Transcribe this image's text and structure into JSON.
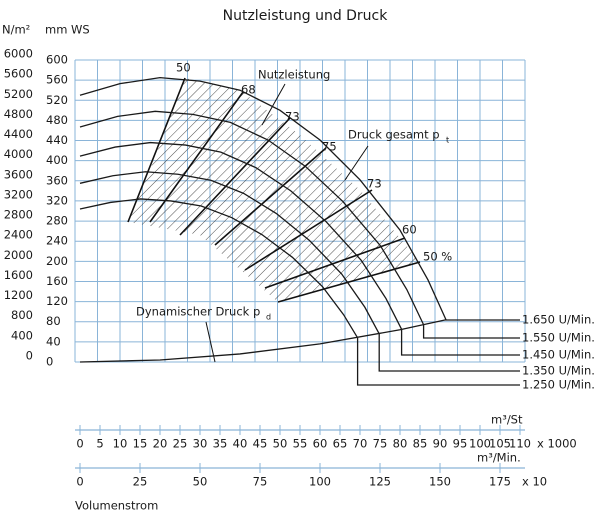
{
  "chart_data": {
    "type": "line",
    "title": "Nutzleistung und Druck",
    "y_label": "mm WS",
    "y2_label": "N/m²",
    "ylim": [
      0,
      600
    ],
    "yticks": [
      0,
      40,
      80,
      120,
      160,
      200,
      240,
      280,
      320,
      360,
      400,
      440,
      480,
      520,
      560,
      600
    ],
    "y2lim": [
      0,
      6000
    ],
    "y2ticks": [
      0,
      400,
      800,
      1200,
      1600,
      2000,
      2400,
      2800,
      3200,
      3600,
      4000,
      4400,
      4800,
      5200,
      5600,
      6000
    ],
    "xlim": [
      0,
      110
    ],
    "color": "#1a1a1a",
    "grid_color": "#8ab4d8",
    "series": [
      {
        "name": "1.650 U/Min.",
        "x": [
          0,
          10,
          20,
          30,
          40,
          50,
          60,
          70,
          80,
          87,
          91.5
        ],
        "values": [
          530,
          553,
          565,
          558,
          540,
          500,
          441,
          362,
          262,
          163,
          84
        ]
      },
      {
        "name": "1.550 U/Min.",
        "x": [
          0,
          9.4,
          18.8,
          28.2,
          37.6,
          47,
          56.3,
          65.7,
          75.1,
          81.7,
          85.9
        ],
        "values": [
          467,
          488,
          498,
          492,
          476,
          441,
          389,
          319,
          231,
          144,
          74
        ]
      },
      {
        "name": "1.450 U/Min.",
        "x": [
          0,
          8.8,
          17.6,
          26.4,
          35.2,
          44,
          52.7,
          61.5,
          70.3,
          76.5,
          80.4
        ],
        "values": [
          409,
          427,
          436,
          431,
          417,
          386,
          340,
          279,
          202,
          126,
          65
        ]
      },
      {
        "name": "1.350 U/Min.",
        "x": [
          0,
          8.2,
          16.4,
          24.5,
          32.7,
          40.9,
          49.1,
          57.3,
          65.4,
          71.2,
          74.8
        ],
        "values": [
          355,
          370,
          378,
          373,
          361,
          335,
          295,
          242,
          175,
          109,
          56
        ]
      },
      {
        "name": "1.250 U/Min.",
        "x": [
          0,
          7.6,
          15.2,
          22.7,
          30.3,
          37.9,
          45.5,
          53.1,
          60.6,
          65.9,
          69.4
        ],
        "values": [
          304,
          317,
          324,
          320,
          310,
          287,
          253,
          208,
          150,
          94,
          48
        ]
      }
    ],
    "dynamic_pressure": {
      "label": "Dynamischer Druck p",
      "subscript": "d",
      "x": [
        0,
        20,
        40,
        60,
        80,
        91.5
      ],
      "values": [
        0,
        4,
        16,
        36,
        64,
        84
      ]
    },
    "annotations": {
      "power": "Nutzleistung",
      "total_pressure": "Druck gesamt p",
      "total_pressure_subscript": "t",
      "efficiency": [
        "50",
        "68",
        "73",
        "75",
        "73",
        "60",
        "50 %"
      ]
    },
    "x_axes": [
      {
        "label": "m³/St",
        "factor": "x 1000",
        "xlim": [
          0,
          110
        ],
        "xticks": [
          0,
          5,
          10,
          15,
          20,
          25,
          30,
          35,
          40,
          45,
          50,
          55,
          60,
          65,
          70,
          75,
          80,
          85,
          90,
          95,
          100,
          105,
          110
        ]
      },
      {
        "label": "m³/Min.",
        "factor": "x 10",
        "xlim": [
          0,
          175
        ],
        "xticks": [
          0,
          25,
          50,
          75,
          100,
          125,
          150,
          175
        ]
      }
    ],
    "x_title": "Volumenstrom"
  }
}
